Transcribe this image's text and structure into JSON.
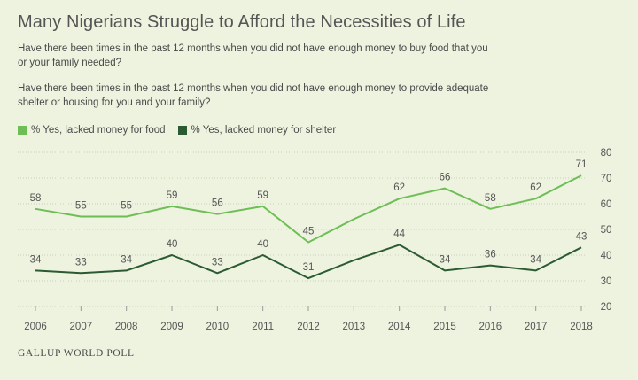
{
  "title": "Many Nigerians Struggle to Afford the Necessities of Life",
  "questions": [
    "Have there been times in the past 12 months when you did not have enough money to buy food that you or your family needed?",
    "Have there been times in the past 12 months when you did not have enough money to provide adequate shelter or housing for you and your family?"
  ],
  "source": "GALLUP WORLD POLL",
  "colors": {
    "food": "#6ebe56",
    "shelter": "#2b5a33",
    "grid": "#c7cfb8",
    "background": "#edf3df"
  },
  "chart_data": {
    "type": "line",
    "x": [
      "2006",
      "2007",
      "2008",
      "2009",
      "2010",
      "2011",
      "2012",
      "2013",
      "2014",
      "2015",
      "2016",
      "2017",
      "2018"
    ],
    "series": [
      {
        "name": "% Yes, lacked money for food",
        "values": [
          58,
          55,
          55,
          59,
          56,
          59,
          45,
          54,
          62,
          66,
          58,
          62,
          71
        ],
        "labels": [
          "58",
          "55",
          "55",
          "59",
          "56",
          "59",
          "45",
          "",
          "62",
          "66",
          "58",
          "62",
          "71"
        ]
      },
      {
        "name": "% Yes, lacked money for shelter",
        "values": [
          34,
          33,
          34,
          40,
          33,
          40,
          31,
          38,
          44,
          34,
          36,
          34,
          43
        ],
        "labels": [
          "34",
          "33",
          "34",
          "40",
          "33",
          "40",
          "31",
          "",
          "44",
          "34",
          "36",
          "34",
          "43"
        ]
      }
    ],
    "yticks": [
      20,
      30,
      40,
      50,
      60,
      70,
      80
    ],
    "ylim": [
      20,
      80
    ],
    "grid": true,
    "legend": "top-left"
  }
}
